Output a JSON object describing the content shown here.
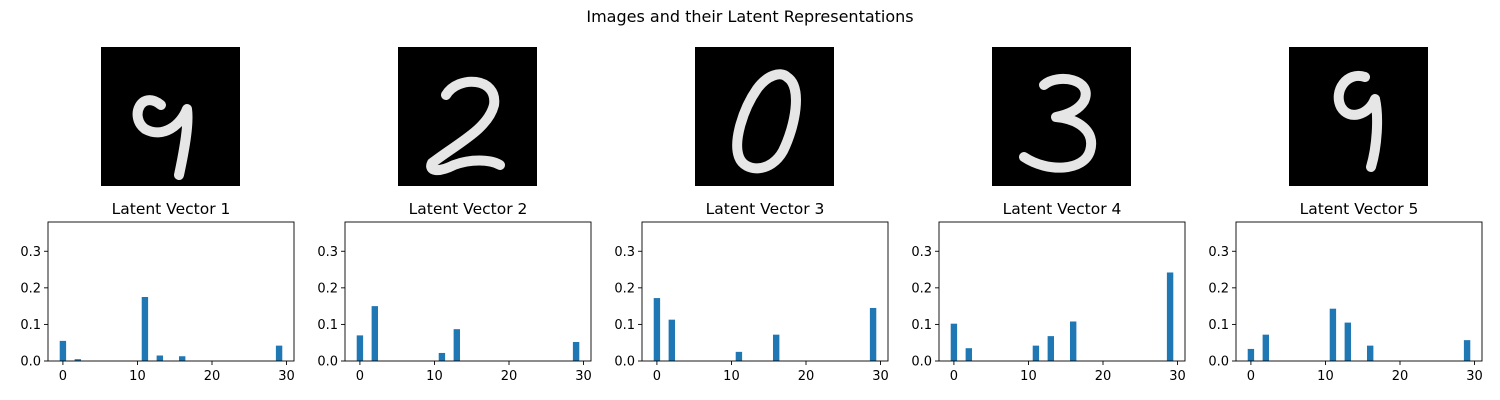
{
  "chart_data": {
    "title": "Images and their Latent Representations",
    "panels": [
      {
        "digit_image": "9",
        "type": "bar",
        "title": "Latent Vector 1",
        "x": [
          0,
          2,
          11,
          13,
          16,
          29
        ],
        "values": [
          0.055,
          0.005,
          0.175,
          0.015,
          0.013,
          0.042
        ],
        "xlim": [
          -2,
          31
        ],
        "ylim": [
          0,
          0.38
        ],
        "xticks": [
          "0",
          "10",
          "20",
          "30"
        ],
        "yticks": [
          "0.0",
          "0.1",
          "0.2",
          "0.3"
        ]
      },
      {
        "digit_image": "2",
        "type": "bar",
        "title": "Latent Vector 2",
        "x": [
          0,
          2,
          11,
          13,
          29
        ],
        "values": [
          0.07,
          0.15,
          0.022,
          0.087,
          0.052
        ],
        "xlim": [
          -2,
          31
        ],
        "ylim": [
          0,
          0.38
        ],
        "xticks": [
          "0",
          "10",
          "20",
          "30"
        ],
        "yticks": [
          "0.0",
          "0.1",
          "0.2",
          "0.3"
        ]
      },
      {
        "digit_image": "0",
        "type": "bar",
        "title": "Latent Vector 3",
        "x": [
          0,
          2,
          11,
          16,
          29
        ],
        "values": [
          0.172,
          0.113,
          0.025,
          0.072,
          0.145
        ],
        "xlim": [
          -2,
          31
        ],
        "ylim": [
          0,
          0.38
        ],
        "xticks": [
          "0",
          "10",
          "20",
          "30"
        ],
        "yticks": [
          "0.0",
          "0.1",
          "0.2",
          "0.3"
        ]
      },
      {
        "digit_image": "3",
        "type": "bar",
        "title": "Latent Vector 4",
        "x": [
          0,
          2,
          11,
          13,
          16,
          29
        ],
        "values": [
          0.102,
          0.035,
          0.042,
          0.068,
          0.108,
          0.242
        ],
        "xlim": [
          -2,
          31
        ],
        "ylim": [
          0,
          0.38
        ],
        "xticks": [
          "0",
          "10",
          "20",
          "30"
        ],
        "yticks": [
          "0.0",
          "0.1",
          "0.2",
          "0.3"
        ]
      },
      {
        "digit_image": "9",
        "type": "bar",
        "title": "Latent Vector 5",
        "x": [
          0,
          2,
          11,
          13,
          16,
          29
        ],
        "values": [
          0.033,
          0.072,
          0.143,
          0.105,
          0.042,
          0.057
        ],
        "xlim": [
          -2,
          31
        ],
        "ylim": [
          0,
          0.38
        ],
        "xticks": [
          "0",
          "10",
          "20",
          "30"
        ],
        "yticks": [
          "0.0",
          "0.1",
          "0.2",
          "0.3"
        ]
      }
    ],
    "bar_color": "#1f77b4",
    "grid": false
  }
}
